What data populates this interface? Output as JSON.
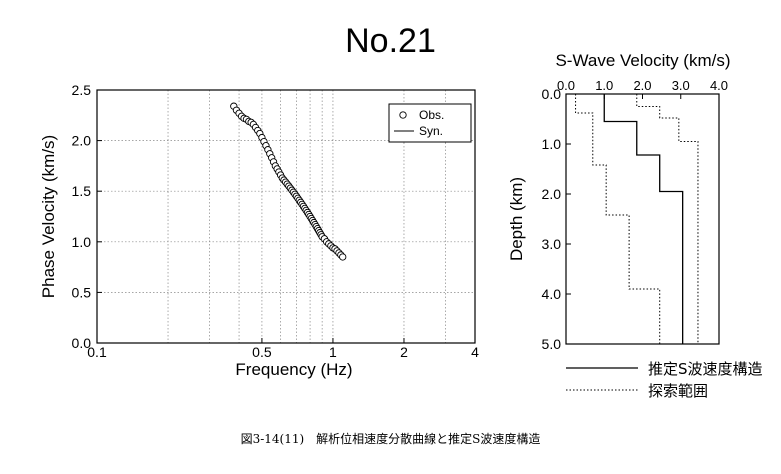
{
  "title": "No.21",
  "caption": "図3-14(11)　解析位相速度分散曲線と推定S波速度構造",
  "chart_data": [
    {
      "type": "scatter",
      "ylabel": "Phase Velocity (km/s)",
      "xlabel": "Frequency (Hz)",
      "x_scale": "log",
      "xlim": [
        0.1,
        4
      ],
      "ylim": [
        0,
        2.5
      ],
      "x_ticks": [
        0.1,
        0.5,
        1,
        2,
        4
      ],
      "x_tick_labels": [
        "0.1",
        "0.5",
        "1",
        "2",
        "4"
      ],
      "y_ticks": [
        0,
        0.5,
        1.0,
        1.5,
        2.0,
        2.5
      ],
      "y_tick_labels": [
        "0.0",
        "0.5",
        "1.0",
        "1.5",
        "2.0",
        "2.5"
      ],
      "grid": true,
      "legend": {
        "position": "top-right",
        "entries": [
          "Obs.",
          "Syn."
        ]
      },
      "series": [
        {
          "name": "Obs.",
          "marker": "circle",
          "points": [
            [
              0.38,
              2.34
            ],
            [
              0.39,
              2.3
            ],
            [
              0.4,
              2.27
            ],
            [
              0.41,
              2.24
            ],
            [
              0.42,
              2.22
            ],
            [
              0.43,
              2.21
            ],
            [
              0.44,
              2.19
            ],
            [
              0.45,
              2.18
            ],
            [
              0.46,
              2.16
            ],
            [
              0.47,
              2.13
            ],
            [
              0.48,
              2.1
            ],
            [
              0.49,
              2.07
            ],
            [
              0.5,
              2.03
            ],
            [
              0.51,
              1.99
            ],
            [
              0.52,
              1.95
            ],
            [
              0.53,
              1.91
            ],
            [
              0.54,
              1.87
            ],
            [
              0.55,
              1.83
            ],
            [
              0.56,
              1.79
            ],
            [
              0.57,
              1.75
            ],
            [
              0.58,
              1.72
            ],
            [
              0.59,
              1.69
            ],
            [
              0.6,
              1.66
            ],
            [
              0.61,
              1.63
            ],
            [
              0.62,
              1.61
            ],
            [
              0.63,
              1.59
            ],
            [
              0.64,
              1.57
            ],
            [
              0.65,
              1.55
            ],
            [
              0.66,
              1.53
            ],
            [
              0.67,
              1.51
            ],
            [
              0.68,
              1.49
            ],
            [
              0.69,
              1.47
            ],
            [
              0.7,
              1.45
            ],
            [
              0.71,
              1.43
            ],
            [
              0.72,
              1.41
            ],
            [
              0.73,
              1.39
            ],
            [
              0.74,
              1.37
            ],
            [
              0.75,
              1.35
            ],
            [
              0.76,
              1.33
            ],
            [
              0.77,
              1.31
            ],
            [
              0.78,
              1.29
            ],
            [
              0.79,
              1.27
            ],
            [
              0.8,
              1.25
            ],
            [
              0.81,
              1.23
            ],
            [
              0.82,
              1.21
            ],
            [
              0.83,
              1.19
            ],
            [
              0.84,
              1.17
            ],
            [
              0.85,
              1.15
            ],
            [
              0.86,
              1.13
            ],
            [
              0.87,
              1.11
            ],
            [
              0.88,
              1.09
            ],
            [
              0.89,
              1.07
            ],
            [
              0.9,
              1.05
            ],
            [
              0.92,
              1.03
            ],
            [
              0.94,
              1.0
            ],
            [
              0.96,
              0.98
            ],
            [
              0.98,
              0.96
            ],
            [
              1.0,
              0.94
            ],
            [
              1.02,
              0.93
            ],
            [
              1.04,
              0.91
            ],
            [
              1.06,
              0.89
            ],
            [
              1.08,
              0.87
            ],
            [
              1.1,
              0.85
            ]
          ]
        }
      ]
    },
    {
      "type": "line",
      "title": "S-Wave Velocity (km/s)",
      "ylabel": "Depth (km)",
      "xlim": [
        0,
        4.0
      ],
      "ylim": [
        0,
        5.0
      ],
      "y_inverted": true,
      "x_ticks": [
        0,
        1,
        2,
        3,
        4
      ],
      "x_tick_labels": [
        "0.0",
        "1.0",
        "2.0",
        "3.0",
        "4.0"
      ],
      "y_ticks": [
        0,
        1,
        2,
        3,
        4,
        5
      ],
      "y_tick_labels": [
        "0.0",
        "1.0",
        "2.0",
        "3.0",
        "4.0",
        "5.0"
      ],
      "legend": {
        "position": "bottom",
        "entries": [
          "推定S波速度構造",
          "探索範囲"
        ]
      },
      "series": [
        {
          "name": "推定S波速度構造",
          "style": "solid",
          "profile": [
            [
              1.0,
              0.0
            ],
            [
              1.0,
              0.55
            ],
            [
              1.85,
              0.55
            ],
            [
              1.85,
              1.22
            ],
            [
              2.45,
              1.22
            ],
            [
              2.45,
              1.95
            ],
            [
              3.05,
              1.95
            ],
            [
              3.05,
              5.0
            ]
          ]
        },
        {
          "name": "探索範囲",
          "style": "dotted",
          "profile": [
            [
              0.25,
              0.0
            ],
            [
              0.25,
              0.38
            ],
            [
              0.7,
              0.38
            ],
            [
              0.7,
              1.42
            ],
            [
              1.05,
              1.42
            ],
            [
              1.05,
              2.42
            ],
            [
              1.65,
              2.42
            ],
            [
              1.65,
              3.9
            ],
            [
              2.45,
              3.9
            ],
            [
              2.45,
              5.0
            ]
          ]
        },
        {
          "name": "探索範囲",
          "style": "dotted",
          "profile": [
            [
              1.85,
              0.0
            ],
            [
              1.85,
              0.25
            ],
            [
              2.45,
              0.25
            ],
            [
              2.45,
              0.48
            ],
            [
              2.95,
              0.48
            ],
            [
              2.95,
              0.95
            ],
            [
              3.45,
              0.95
            ],
            [
              3.45,
              5.0
            ]
          ]
        }
      ]
    }
  ]
}
